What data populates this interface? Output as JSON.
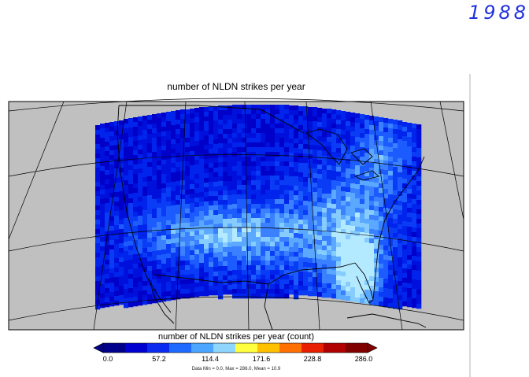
{
  "annotation": {
    "year": "1988"
  },
  "map": {
    "title": "number of NLDN strikes per year",
    "background_color": "#c0c0c0",
    "coastline_color": "#000000",
    "grid_color": "#000000"
  },
  "colorbar": {
    "title": "number of NLDN strikes per year (count)",
    "ticks": [
      "0.0",
      "57.2",
      "114.4",
      "171.6",
      "228.8",
      "286.0"
    ],
    "min": 0.0,
    "max": 286.0,
    "colors": [
      "#00008b",
      "#0000d0",
      "#0a2af0",
      "#1f6bff",
      "#4aa6ff",
      "#8fd6ff",
      "#ffff40",
      "#ffc000",
      "#ff7000",
      "#e82000",
      "#b00000",
      "#800000"
    ]
  },
  "stats": {
    "text": "Data Min = 0.0, Max = 286.0, Mean = 10.9"
  }
}
